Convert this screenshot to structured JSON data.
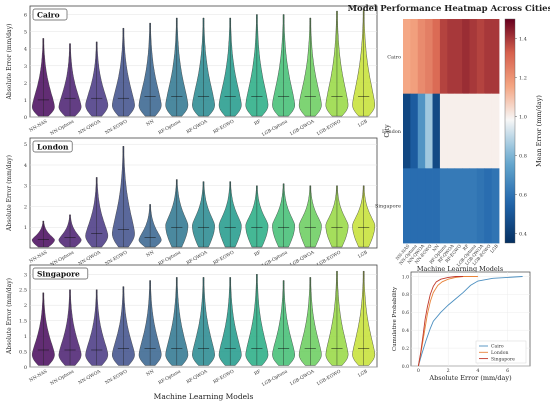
{
  "figure_title": "Model Performance Heatmap Across Cities",
  "palette": [
    "#46085c",
    "#481c6e",
    "#453581",
    "#3d4d8a",
    "#34618d",
    "#2b748e",
    "#24878e",
    "#1f998a",
    "#25ac82",
    "#40bd72",
    "#67cc5c",
    "#95d840",
    "#c6e032"
  ],
  "cdf_colors": [
    "#4c8fc0",
    "#e8833a",
    "#c0392b"
  ],
  "chart_data": [
    {
      "type": "violin",
      "panel": "Cairo",
      "title": "Cairo",
      "ylabel": "Absolute Error (mm/day)",
      "xlabel": "",
      "ylim": [
        0,
        6.5
      ],
      "yticks": [
        0,
        1,
        2,
        3,
        4,
        5,
        6
      ],
      "categories": [
        "NN-NAS",
        "NN-Optuna",
        "NN-QWOA",
        "NN-EGWO",
        "NN",
        "RF-Optuna",
        "RF-QWOA",
        "RF-EGWO",
        "RF",
        "LGB-Optuna",
        "LGB-QWOA",
        "LGB-EGWO",
        "LGB"
      ],
      "max_values": [
        4.6,
        4.3,
        4.4,
        5.2,
        5.5,
        5.8,
        5.8,
        5.8,
        6.0,
        6.0,
        5.8,
        6.2,
        6.3
      ],
      "mode_values": [
        0.6,
        0.6,
        0.7,
        0.7,
        0.7,
        0.7,
        0.7,
        0.7,
        0.7,
        0.7,
        0.7,
        0.7,
        0.7
      ],
      "medians": [
        1.0,
        1.1,
        1.1,
        1.1,
        1.2,
        1.2,
        1.2,
        1.2,
        1.2,
        1.2,
        1.2,
        1.2,
        1.2
      ]
    },
    {
      "type": "violin",
      "panel": "London",
      "title": "London",
      "ylabel": "Absolute Error (mm/day)",
      "xlabel": "",
      "ylim": [
        0,
        5.3
      ],
      "yticks": [
        1,
        2,
        3,
        4,
        5
      ],
      "categories": [
        "NN-NAS",
        "NN-Optuna",
        "NN-QWOA",
        "NN-EGWO",
        "NN",
        "RF-Optuna",
        "RF-QWOA",
        "RF-EGWO",
        "RF",
        "LGB-Optuna",
        "LGB-QWOA",
        "LGB-EGWO",
        "LGB"
      ],
      "max_values": [
        1.3,
        1.6,
        3.4,
        4.9,
        2.1,
        3.3,
        3.2,
        3.2,
        3.0,
        3.1,
        3.0,
        3.0,
        3.0
      ],
      "mode_values": [
        0.4,
        0.4,
        0.6,
        0.7,
        0.4,
        1.1,
        1.1,
        1.1,
        1.1,
        1.1,
        1.1,
        1.1,
        1.1
      ],
      "medians": [
        0.4,
        0.5,
        0.7,
        0.9,
        0.5,
        1.0,
        1.0,
        1.0,
        1.0,
        1.0,
        1.0,
        1.0,
        1.0
      ]
    },
    {
      "type": "violin",
      "panel": "Singapore",
      "title": "Singapore",
      "ylabel": "Absolute Error (mm/day)",
      "xlabel": "Machine Learning Models",
      "ylim": [
        0,
        3.3
      ],
      "yticks": [
        0.0,
        0.5,
        1.0,
        1.5,
        2.0,
        2.5,
        3.0
      ],
      "categories": [
        "NN-NAS",
        "NN-Optuna",
        "NN-QWOA",
        "NN-EGWO",
        "NN",
        "RF-Optuna",
        "RF-QWOA",
        "RF-EGWO",
        "RF",
        "LGB-Optuna",
        "LGB-QWOA",
        "LGB-EGWO",
        "LGB"
      ],
      "max_values": [
        2.4,
        2.5,
        2.5,
        2.6,
        2.8,
        2.9,
        2.9,
        2.9,
        3.0,
        2.8,
        2.9,
        3.1,
        3.1
      ],
      "mode_values": [
        0.4,
        0.4,
        0.4,
        0.4,
        0.4,
        0.4,
        0.4,
        0.4,
        0.4,
        0.4,
        0.4,
        0.4,
        0.4
      ],
      "medians": [
        0.55,
        0.55,
        0.55,
        0.6,
        0.6,
        0.6,
        0.6,
        0.6,
        0.6,
        0.6,
        0.6,
        0.6,
        0.6
      ]
    },
    {
      "type": "heatmap",
      "title": "",
      "xlabel": "Machine Learning Models",
      "ylabel": "City",
      "rows": [
        "Cairo",
        "London",
        "Singapore"
      ],
      "columns": [
        "NN-NAS",
        "NN-Optuna",
        "NN-QWOA",
        "NN-EGWO",
        "NN",
        "RF-Optuna",
        "RF-QWOA",
        "RF-EGWO",
        "RF",
        "LGB-Optuna",
        "LGB-QWOA",
        "LGB-EGWO",
        "LGB"
      ],
      "values": [
        [
          1.15,
          1.17,
          1.22,
          1.25,
          1.3,
          1.38,
          1.4,
          1.4,
          1.42,
          1.4,
          1.38,
          1.4,
          1.4
        ],
        [
          0.44,
          0.52,
          0.7,
          0.85,
          0.45,
          1.0,
          1.0,
          1.0,
          1.0,
          1.0,
          1.0,
          1.0,
          1.0
        ],
        [
          0.58,
          0.58,
          0.58,
          0.58,
          0.58,
          0.62,
          0.62,
          0.62,
          0.62,
          0.62,
          0.6,
          0.58,
          0.6
        ]
      ],
      "colorbar_label": "Mean Error (mm/day)",
      "colorbar_ticks": [
        0.4,
        0.6,
        0.8,
        1.0,
        1.2,
        1.4
      ],
      "vmin": 0.35,
      "vmax": 1.5
    },
    {
      "type": "line",
      "title": "",
      "xlabel": "Absolute Error (mm/day)",
      "ylabel": "Cumulative Probability",
      "xlim": [
        -0.5,
        7.5
      ],
      "ylim": [
        0,
        1.05
      ],
      "xticks": [
        0,
        2,
        4,
        6
      ],
      "yticks": [
        0.0,
        0.2,
        0.4,
        0.6,
        0.8,
        1.0
      ],
      "legend_position": "bottom-right",
      "series": [
        {
          "name": "Cairo",
          "x": [
            0,
            0.2,
            0.5,
            0.8,
            1.0,
            1.5,
            2.0,
            2.5,
            3.0,
            3.5,
            4.0,
            5.0,
            6.0,
            7.0
          ],
          "y": [
            0,
            0.12,
            0.28,
            0.42,
            0.5,
            0.6,
            0.68,
            0.75,
            0.82,
            0.9,
            0.95,
            0.98,
            0.99,
            1.0
          ]
        },
        {
          "name": "London",
          "x": [
            0,
            0.2,
            0.4,
            0.6,
            0.8,
            1.0,
            1.3,
            1.6,
            2.0,
            2.5,
            3.0,
            4.0
          ],
          "y": [
            0,
            0.18,
            0.38,
            0.58,
            0.72,
            0.82,
            0.9,
            0.94,
            0.97,
            0.99,
            1.0,
            1.0
          ]
        },
        {
          "name": "Singapore",
          "x": [
            0,
            0.15,
            0.3,
            0.45,
            0.6,
            0.8,
            1.0,
            1.2,
            1.5,
            2.0,
            2.5,
            3.0
          ],
          "y": [
            0,
            0.15,
            0.33,
            0.52,
            0.66,
            0.8,
            0.89,
            0.94,
            0.97,
            0.99,
            1.0,
            1.0
          ]
        }
      ]
    }
  ]
}
